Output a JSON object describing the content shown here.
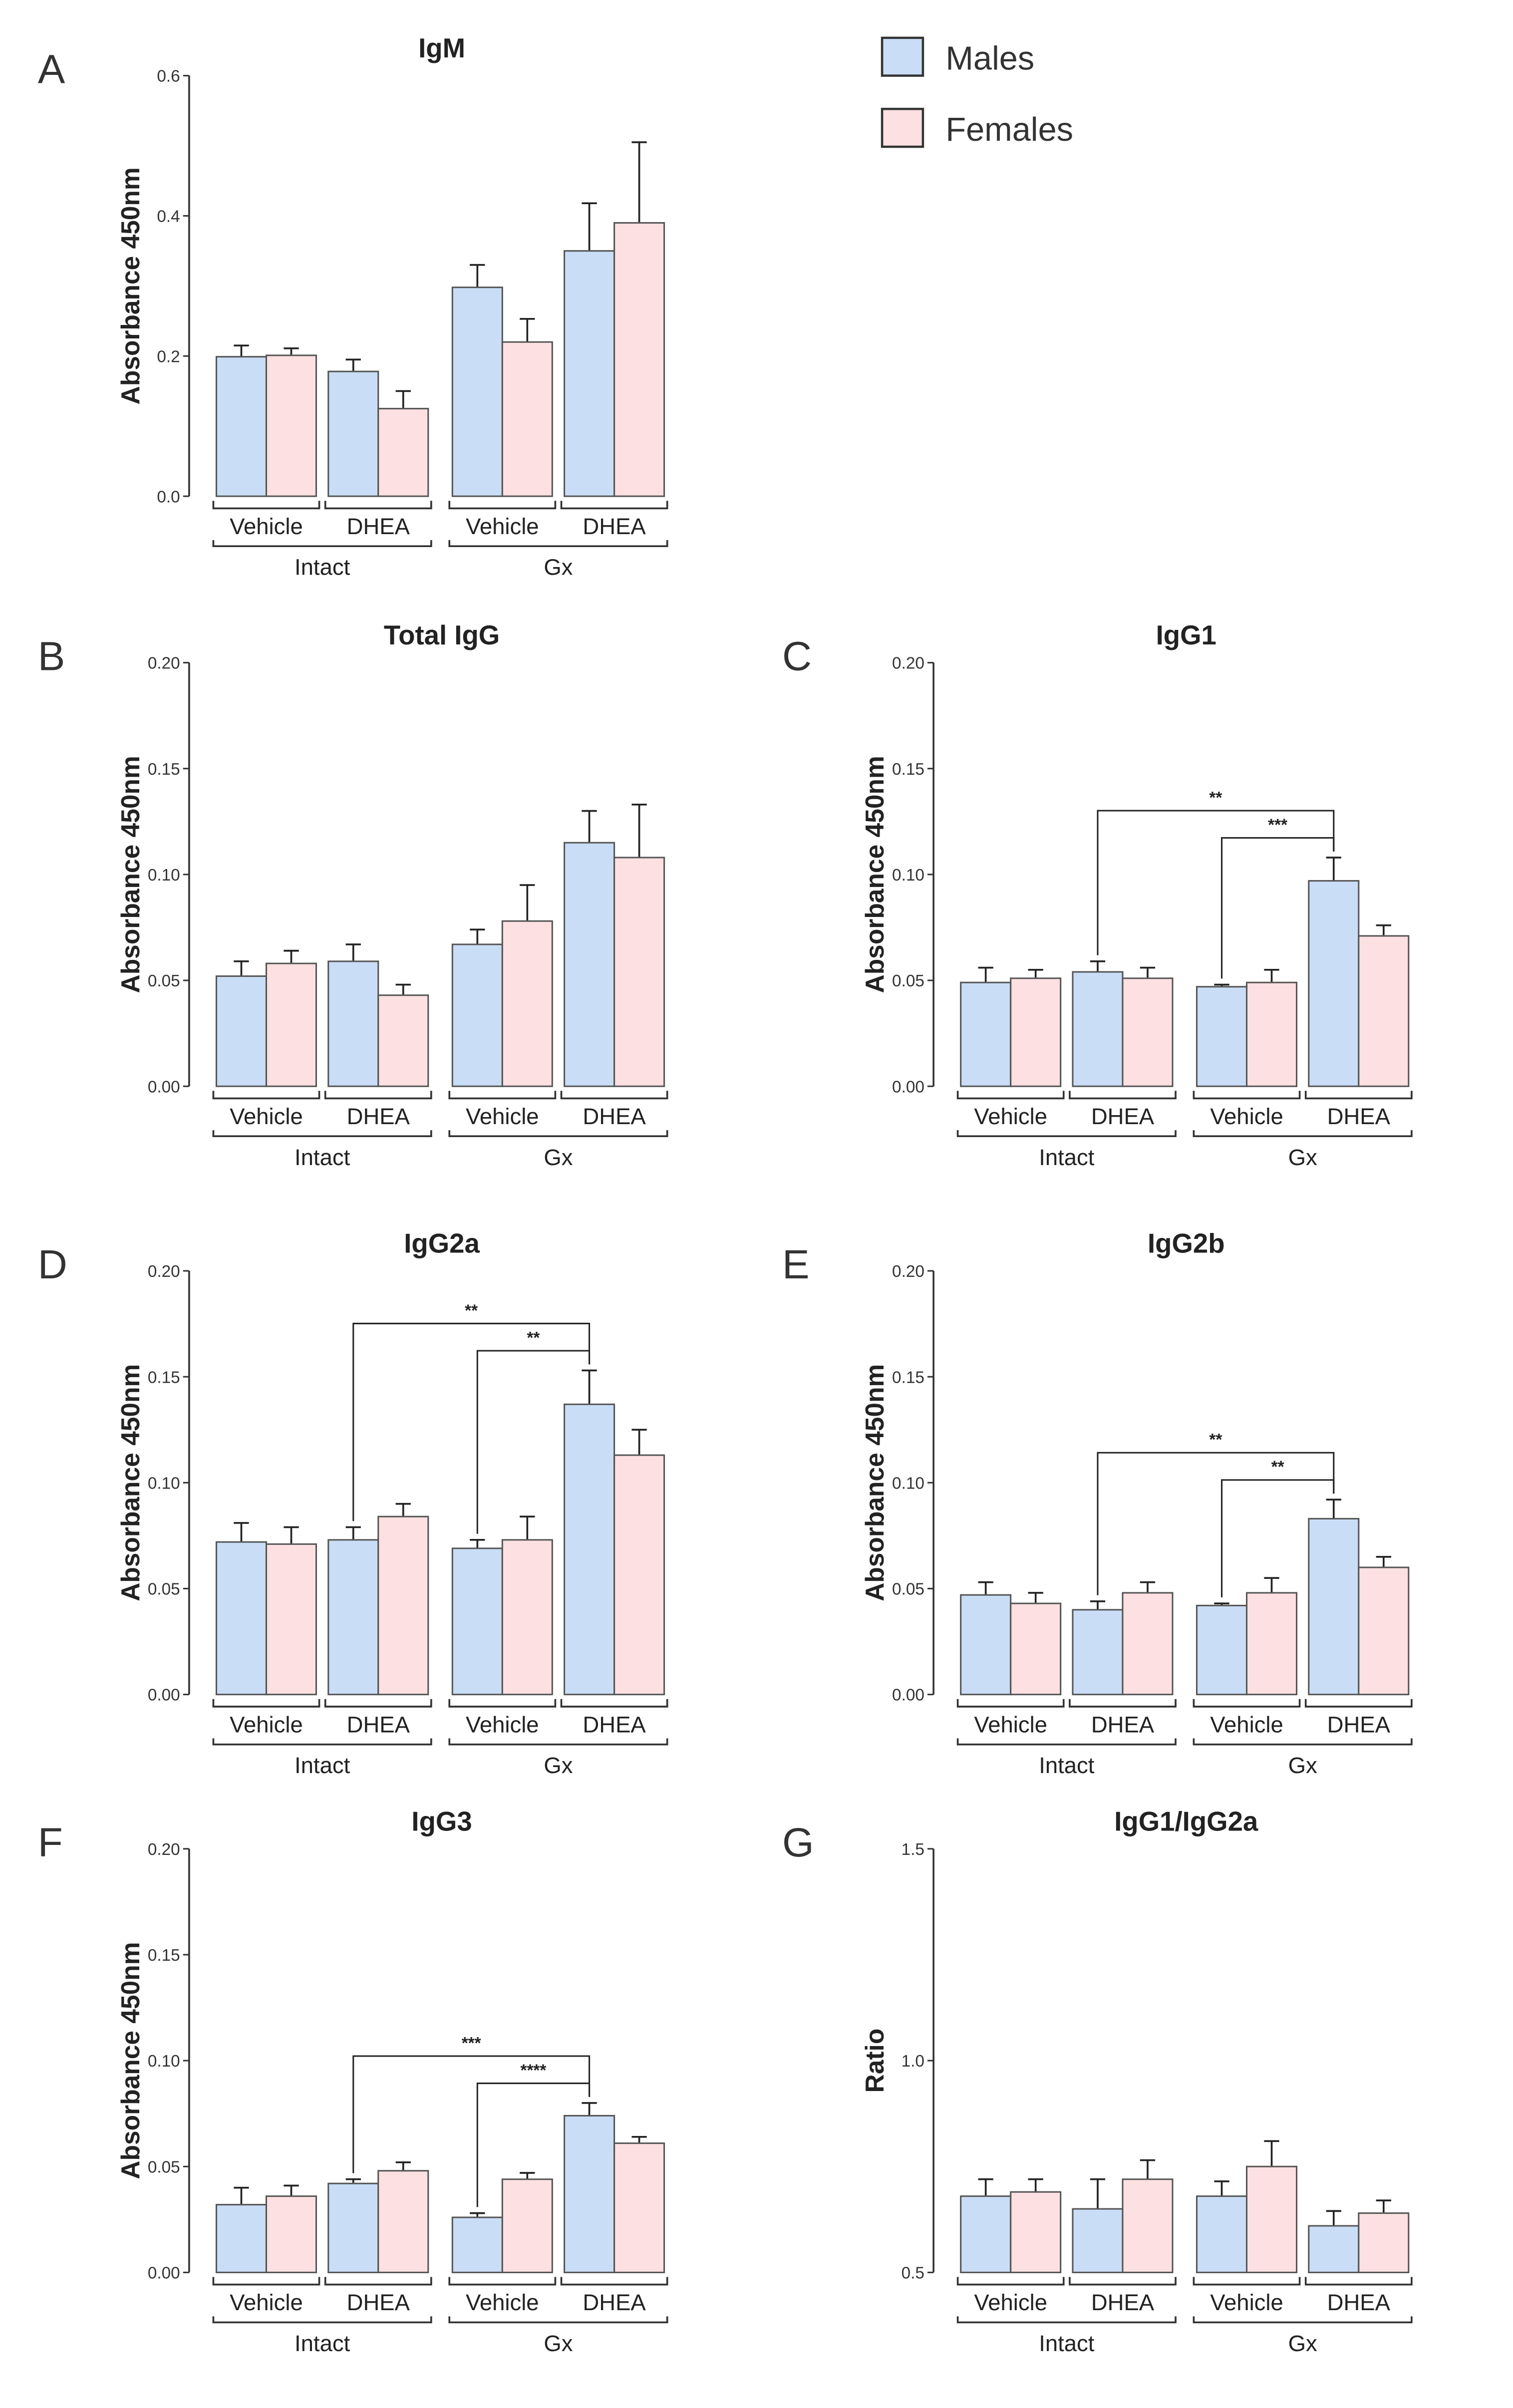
{
  "legend": {
    "males": "Males",
    "females": "Females"
  },
  "colors": {
    "males": "#c9ddf6",
    "females": "#fde0e2",
    "stroke": "#555555"
  },
  "chart_data": [
    {
      "panel": "A",
      "type": "bar",
      "title": "IgM",
      "ylabel": "Absorbance 450nm",
      "ylim": [
        0,
        0.6
      ],
      "ticks": [
        "0.0",
        "0.2",
        "0.4",
        "0.6"
      ],
      "tick_values": [
        0,
        0.2,
        0.4,
        0.6
      ],
      "categories": [
        "Vehicle",
        "DHEA",
        "Vehicle",
        "DHEA"
      ],
      "groups": [
        "Intact",
        "Gx"
      ],
      "series": [
        {
          "name": "Males",
          "values": [
            0.199,
            0.178,
            0.298,
            0.35
          ],
          "errors": [
            0.016,
            0.017,
            0.032,
            0.068
          ]
        },
        {
          "name": "Females",
          "values": [
            0.201,
            0.125,
            0.22,
            0.39
          ],
          "errors": [
            0.01,
            0.025,
            0.033,
            0.115
          ]
        }
      ],
      "significance": []
    },
    {
      "panel": "B",
      "type": "bar",
      "title": "Total IgG",
      "ylabel": "Absorbance 450nm",
      "ylim": [
        0,
        0.2
      ],
      "ticks": [
        "0.00",
        "0.05",
        "0.10",
        "0.15",
        "0.20"
      ],
      "tick_values": [
        0,
        0.05,
        0.1,
        0.15,
        0.2
      ],
      "categories": [
        "Vehicle",
        "DHEA",
        "Vehicle",
        "DHEA"
      ],
      "groups": [
        "Intact",
        "Gx"
      ],
      "series": [
        {
          "name": "Males",
          "values": [
            0.052,
            0.059,
            0.067,
            0.115
          ],
          "errors": [
            0.007,
            0.008,
            0.007,
            0.015
          ]
        },
        {
          "name": "Females",
          "values": [
            0.058,
            0.043,
            0.078,
            0.108
          ],
          "errors": [
            0.006,
            0.005,
            0.017,
            0.025
          ]
        }
      ],
      "significance": []
    },
    {
      "panel": "C",
      "type": "bar",
      "title": "IgG1",
      "ylabel": "Absorbance 450nm",
      "ylim": [
        0,
        0.2
      ],
      "ticks": [
        "0.00",
        "0.05",
        "0.10",
        "0.15",
        "0.20"
      ],
      "tick_values": [
        0,
        0.05,
        0.1,
        0.15,
        0.2
      ],
      "categories": [
        "Vehicle",
        "DHEA",
        "Vehicle",
        "DHEA"
      ],
      "groups": [
        "Intact",
        "Gx"
      ],
      "series": [
        {
          "name": "Males",
          "values": [
            0.049,
            0.054,
            0.047,
            0.097
          ],
          "errors": [
            0.007,
            0.005,
            0.001,
            0.011
          ]
        },
        {
          "name": "Females",
          "values": [
            0.051,
            0.051,
            0.049,
            0.071
          ],
          "errors": [
            0.004,
            0.005,
            0.006,
            0.005
          ]
        }
      ],
      "significance": [
        {
          "from": "Intact DHEA Males",
          "to": "Gx DHEA Males",
          "label": "**"
        },
        {
          "from": "Gx Vehicle Males",
          "to": "Gx DHEA Males",
          "label": "***"
        }
      ]
    },
    {
      "panel": "D",
      "type": "bar",
      "title": "IgG2a",
      "ylabel": "Absorbance 450nm",
      "ylim": [
        0,
        0.2
      ],
      "ticks": [
        "0.00",
        "0.05",
        "0.10",
        "0.15",
        "0.20"
      ],
      "tick_values": [
        0,
        0.05,
        0.1,
        0.15,
        0.2
      ],
      "categories": [
        "Vehicle",
        "DHEA",
        "Vehicle",
        "DHEA"
      ],
      "groups": [
        "Intact",
        "Gx"
      ],
      "series": [
        {
          "name": "Males",
          "values": [
            0.072,
            0.073,
            0.069,
            0.137
          ],
          "errors": [
            0.009,
            0.006,
            0.004,
            0.016
          ]
        },
        {
          "name": "Females",
          "values": [
            0.071,
            0.084,
            0.073,
            0.113
          ],
          "errors": [
            0.008,
            0.006,
            0.011,
            0.012
          ]
        }
      ],
      "significance": [
        {
          "from": "Intact DHEA Males",
          "to": "Gx DHEA Males",
          "label": "**"
        },
        {
          "from": "Gx Vehicle Males",
          "to": "Gx DHEA Males",
          "label": "**"
        }
      ]
    },
    {
      "panel": "E",
      "type": "bar",
      "title": "IgG2b",
      "ylabel": "Absorbance 450nm",
      "ylim": [
        0,
        0.2
      ],
      "ticks": [
        "0.00",
        "0.05",
        "0.10",
        "0.15",
        "0.20"
      ],
      "tick_values": [
        0,
        0.05,
        0.1,
        0.15,
        0.2
      ],
      "categories": [
        "Vehicle",
        "DHEA",
        "Vehicle",
        "DHEA"
      ],
      "groups": [
        "Intact",
        "Gx"
      ],
      "series": [
        {
          "name": "Males",
          "values": [
            0.047,
            0.04,
            0.042,
            0.083
          ],
          "errors": [
            0.006,
            0.004,
            0.001,
            0.009
          ]
        },
        {
          "name": "Females",
          "values": [
            0.043,
            0.048,
            0.048,
            0.06
          ],
          "errors": [
            0.005,
            0.005,
            0.007,
            0.005
          ]
        }
      ],
      "significance": [
        {
          "from": "Intact DHEA Males",
          "to": "Gx DHEA Males",
          "label": "**"
        },
        {
          "from": "Gx Vehicle Males",
          "to": "Gx DHEA Males",
          "label": "**"
        }
      ]
    },
    {
      "panel": "F",
      "type": "bar",
      "title": "IgG3",
      "ylabel": "Absorbance 450nm",
      "ylim": [
        0,
        0.2
      ],
      "ticks": [
        "0.00",
        "0.05",
        "0.10",
        "0.15",
        "0.20"
      ],
      "tick_values": [
        0,
        0.05,
        0.1,
        0.15,
        0.2
      ],
      "categories": [
        "Vehicle",
        "DHEA",
        "Vehicle",
        "DHEA"
      ],
      "groups": [
        "Intact",
        "Gx"
      ],
      "series": [
        {
          "name": "Males",
          "values": [
            0.032,
            0.042,
            0.026,
            0.074
          ],
          "errors": [
            0.008,
            0.002,
            0.002,
            0.006
          ]
        },
        {
          "name": "Females",
          "values": [
            0.036,
            0.048,
            0.044,
            0.061
          ],
          "errors": [
            0.005,
            0.004,
            0.003,
            0.003
          ]
        }
      ],
      "significance": [
        {
          "from": "Intact DHEA Males",
          "to": "Gx DHEA Males",
          "label": "***"
        },
        {
          "from": "Gx Vehicle Males",
          "to": "Gx DHEA Males",
          "label": "****"
        }
      ]
    },
    {
      "panel": "G",
      "type": "bar",
      "title": "IgG1/IgG2a",
      "ylabel": "Ratio",
      "ylim": [
        0.5,
        1.5
      ],
      "ticks": [
        "0.5",
        "1.0",
        "1.5"
      ],
      "tick_values": [
        0.5,
        1.0,
        1.5
      ],
      "categories": [
        "Vehicle",
        "DHEA",
        "Vehicle",
        "DHEA"
      ],
      "groups": [
        "Intact",
        "Gx"
      ],
      "series": [
        {
          "name": "Males",
          "values": [
            0.68,
            0.65,
            0.68,
            0.61
          ],
          "errors": [
            0.04,
            0.07,
            0.035,
            0.035
          ]
        },
        {
          "name": "Females",
          "values": [
            0.69,
            0.72,
            0.75,
            0.64
          ],
          "errors": [
            0.03,
            0.045,
            0.06,
            0.03
          ]
        }
      ],
      "significance": []
    }
  ]
}
